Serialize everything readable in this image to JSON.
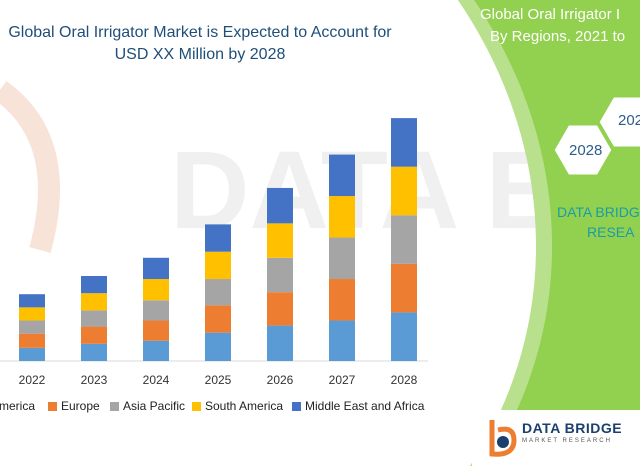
{
  "chart_data": {
    "type": "bar",
    "stacked": true,
    "title": "Global Oral Irrigator Market is Expected to Account for USD XX Million by 2028",
    "categories": [
      "2022",
      "2023",
      "2024",
      "2025",
      "2026",
      "2027",
      "2028"
    ],
    "series": [
      {
        "name": "North America",
        "color": "#5b9bd5",
        "values": [
          13,
          17,
          20,
          28,
          35,
          40,
          48
        ]
      },
      {
        "name": "Europe",
        "color": "#ed7d31",
        "values": [
          14,
          17,
          20,
          27,
          33,
          41,
          48
        ]
      },
      {
        "name": "Asia Pacific",
        "color": "#a5a5a5",
        "values": [
          13,
          16,
          20,
          26,
          34,
          41,
          48
        ]
      },
      {
        "name": "South America",
        "color": "#ffc000",
        "values": [
          13,
          17,
          21,
          27,
          34,
          41,
          48
        ]
      },
      {
        "name": "Middle East and Africa",
        "color": "#4472c4",
        "values": [
          13,
          17,
          21,
          27,
          35,
          41,
          48
        ]
      }
    ],
    "legend_position": "bottom",
    "grid": false,
    "y_axis_shown": false
  },
  "legend_labels": [
    "America",
    "Europe",
    "Asia Pacific",
    "South America",
    "Middle East and Africa"
  ],
  "panel": {
    "title_line1": "Global Oral Irrigator I",
    "title_line2": "By Regions, 2021 to",
    "hex_left": "2028",
    "hex_right": "202",
    "brand_line1": "DATA BRIDG",
    "brand_line2": "RESEA",
    "panel_color": "#92d050"
  },
  "watermark": {
    "text": "DATA BRIDGE"
  },
  "logo": {
    "name": "DATA BRIDGE",
    "sub": "MARKET RESEARCH"
  }
}
